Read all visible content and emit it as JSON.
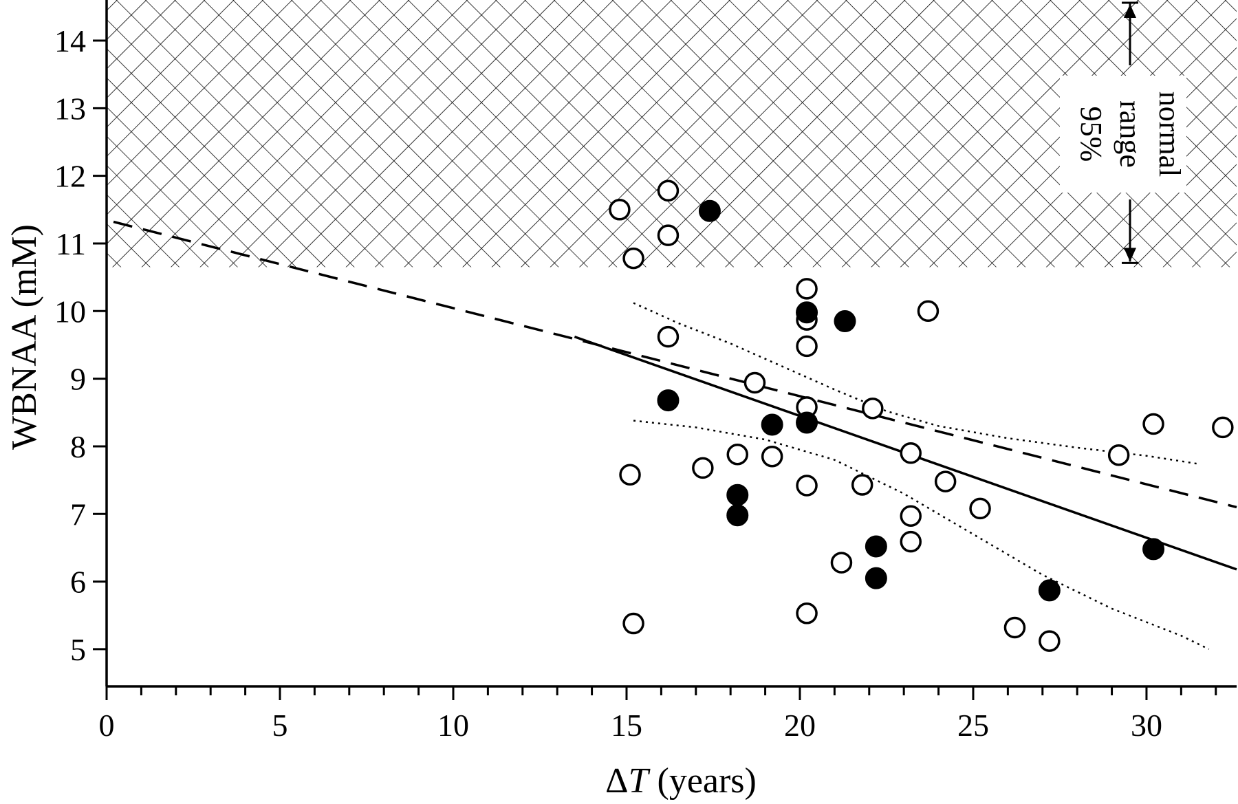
{
  "chart_data": {
    "type": "scatter",
    "xlabel_prefix": "Δ",
    "xlabel_var": "T",
    "xlabel_suffix": " (years)",
    "ylabel": "WBNAA (mM)",
    "xlim": [
      0,
      32.6
    ],
    "ylim": [
      4.45,
      14.6
    ],
    "x_ticks": [
      0,
      5,
      10,
      15,
      20,
      25,
      30
    ],
    "y_ticks": [
      5,
      6,
      7,
      8,
      9,
      10,
      11,
      12,
      13,
      14
    ],
    "normal_range": {
      "y_min": 10.65,
      "y_max": 14.6,
      "pattern": "crosshatch",
      "label_lines": [
        "normal",
        "range",
        "95%"
      ]
    },
    "series": [
      {
        "marker": "open-circle",
        "points": [
          [
            14.8,
            11.5
          ],
          [
            15.2,
            10.78
          ],
          [
            16.2,
            11.78
          ],
          [
            16.2,
            11.12
          ],
          [
            16.2,
            9.62
          ],
          [
            15.1,
            7.58
          ],
          [
            15.2,
            5.38
          ],
          [
            17.2,
            7.68
          ],
          [
            18.2,
            7.88
          ],
          [
            18.7,
            8.94
          ],
          [
            19.2,
            7.85
          ],
          [
            20.2,
            10.33
          ],
          [
            20.2,
            9.87
          ],
          [
            20.2,
            9.48
          ],
          [
            20.2,
            8.58
          ],
          [
            20.2,
            7.42
          ],
          [
            20.2,
            5.53
          ],
          [
            21.2,
            6.28
          ],
          [
            21.8,
            7.43
          ],
          [
            22.1,
            8.56
          ],
          [
            23.2,
            7.9
          ],
          [
            23.2,
            6.97
          ],
          [
            23.2,
            6.59
          ],
          [
            23.7,
            10.0
          ],
          [
            24.2,
            7.48
          ],
          [
            25.2,
            7.08
          ],
          [
            26.2,
            5.32
          ],
          [
            27.2,
            5.12
          ],
          [
            29.2,
            7.87
          ],
          [
            30.2,
            8.33
          ],
          [
            32.2,
            8.28
          ]
        ]
      },
      {
        "marker": "filled-circle",
        "points": [
          [
            17.4,
            11.48
          ],
          [
            16.2,
            8.68
          ],
          [
            18.2,
            7.28
          ],
          [
            18.2,
            6.98
          ],
          [
            19.2,
            8.32
          ],
          [
            20.2,
            9.98
          ],
          [
            20.2,
            8.35
          ],
          [
            21.3,
            9.85
          ],
          [
            22.2,
            6.52
          ],
          [
            22.2,
            6.05
          ],
          [
            27.2,
            5.87
          ],
          [
            30.2,
            6.48
          ]
        ]
      }
    ],
    "lines": [
      {
        "style": "dashed",
        "points": [
          [
            0.2,
            11.32
          ],
          [
            32.6,
            7.1
          ]
        ]
      },
      {
        "style": "solid",
        "points": [
          [
            13.5,
            9.62
          ],
          [
            32.6,
            6.18
          ]
        ]
      },
      {
        "style": "dotted",
        "points": [
          [
            15.2,
            10.12
          ],
          [
            16.5,
            9.82
          ],
          [
            18,
            9.52
          ],
          [
            19.5,
            9.18
          ],
          [
            21,
            8.84
          ],
          [
            22.5,
            8.52
          ],
          [
            24,
            8.3
          ],
          [
            26,
            8.12
          ],
          [
            28,
            7.98
          ],
          [
            30,
            7.86
          ],
          [
            31.5,
            7.74
          ]
        ]
      },
      {
        "style": "dotted",
        "points": [
          [
            15.2,
            8.38
          ],
          [
            17,
            8.28
          ],
          [
            19,
            8.1
          ],
          [
            21,
            7.8
          ],
          [
            23,
            7.3
          ],
          [
            25,
            6.7
          ],
          [
            27,
            6.1
          ],
          [
            29,
            5.6
          ],
          [
            31,
            5.2
          ],
          [
            31.8,
            5.0
          ]
        ]
      }
    ]
  }
}
